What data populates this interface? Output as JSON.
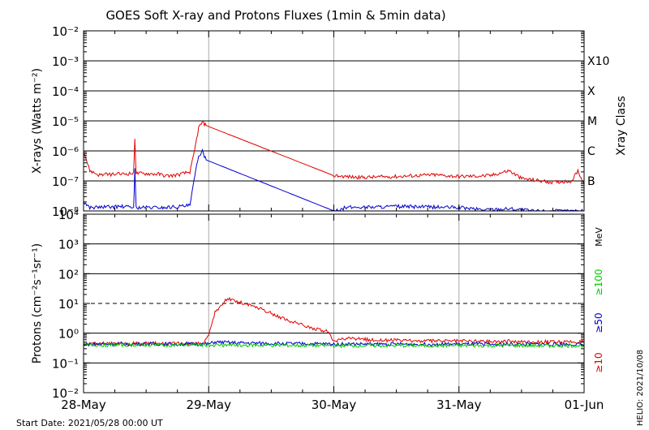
{
  "title": "GOES Soft X-ray and Protons Fluxes   (1min & 5min data)",
  "start_date": "Start Date: 2021/05/28 00:00 UT",
  "credit": "HELIO: 2021/10/08",
  "x_ticks": [
    "28-May",
    "29-May",
    "30-May",
    "31-May",
    "01-Jun"
  ],
  "colors": {
    "red": "#e00000",
    "blue": "#0000cc",
    "green": "#00cc00",
    "axes": "#000000",
    "grid_vertical": "#aaaaaa"
  },
  "chart_data": [
    {
      "type": "line",
      "ylabel": "X-rays (Watts m⁻²)",
      "yscale": "log",
      "ylim": [
        1e-08,
        0.01
      ],
      "ytick_labels": [
        "10⁻⁸",
        "10⁻⁷",
        "10⁻⁶",
        "10⁻⁵",
        "10⁻⁴",
        "10⁻³",
        "10⁻²"
      ],
      "xlim_days": [
        0,
        4
      ],
      "right_axis_label": "Xray Class",
      "class_labels": [
        {
          "label": "B",
          "value": 1e-07
        },
        {
          "label": "C",
          "value": 1e-06
        },
        {
          "label": "M",
          "value": 1e-05
        },
        {
          "label": "X",
          "value": 0.0001
        },
        {
          "label": "X10",
          "value": 0.001
        }
      ],
      "series": [
        {
          "color": "red",
          "points": [
            [
              0.0,
              1e-06
            ],
            [
              0.05,
              2.2e-07
            ],
            [
              0.12,
              1.6e-07
            ],
            [
              0.3,
              1.7e-07
            ],
            [
              0.4,
              1.8e-07
            ],
            [
              0.41,
              2.8e-06
            ],
            [
              0.42,
              1.8e-07
            ],
            [
              0.6,
              1.7e-07
            ],
            [
              0.65,
              1.5e-07
            ],
            [
              0.7,
              1.5e-07
            ],
            [
              0.75,
              1.6e-07
            ],
            [
              0.85,
              2e-07
            ],
            [
              0.88,
              7e-07
            ],
            [
              0.92,
              6e-06
            ],
            [
              0.95,
              9e-06
            ],
            [
              0.98,
              7e-06
            ],
            [
              2.0,
              1.5e-07
            ],
            [
              2.2,
              1.3e-07
            ],
            [
              2.5,
              1.4e-07
            ],
            [
              2.8,
              1.6e-07
            ],
            [
              3.0,
              1.4e-07
            ],
            [
              3.25,
              1.5e-07
            ],
            [
              3.4,
              2.2e-07
            ],
            [
              3.5,
              1.2e-07
            ],
            [
              3.75,
              9e-08
            ],
            [
              3.9,
              1e-07
            ],
            [
              3.95,
              2.2e-07
            ],
            [
              4.0,
              8e-08
            ]
          ]
        },
        {
          "color": "blue",
          "points": [
            [
              0.0,
              2e-08
            ],
            [
              0.05,
              1.3e-08
            ],
            [
              0.3,
              1.4e-08
            ],
            [
              0.4,
              1.3e-08
            ],
            [
              0.41,
              2.4e-07
            ],
            [
              0.42,
              1.3e-08
            ],
            [
              0.65,
              1.3e-08
            ],
            [
              0.85,
              1.5e-08
            ],
            [
              0.89,
              1.5e-07
            ],
            [
              0.92,
              7e-07
            ],
            [
              0.95,
              9.5e-07
            ],
            [
              0.98,
              5e-07
            ],
            [
              2.0,
              1e-08
            ],
            [
              2.1,
              1.3e-08
            ],
            [
              2.5,
              1.4e-08
            ],
            [
              3.0,
              1.3e-08
            ],
            [
              3.2,
              1.1e-08
            ],
            [
              3.4,
              1.2e-08
            ],
            [
              3.6,
              1e-08
            ],
            [
              4.0,
              1e-08
            ]
          ]
        }
      ]
    },
    {
      "type": "line",
      "ylabel": "Protons (cm⁻²s⁻¹sr⁻¹)",
      "yscale": "log",
      "ylim": [
        0.01,
        10000
      ],
      "ytick_labels": [
        "10⁻²",
        "10⁻¹",
        "10⁰",
        "10¹",
        "10²",
        "10³",
        "10⁴"
      ],
      "xlim_days": [
        0,
        4
      ],
      "dashed_threshold": 10,
      "right_unit": "MeV",
      "series": [
        {
          "name": "≥10",
          "color": "red",
          "points": [
            [
              0.0,
              0.45
            ],
            [
              0.95,
              0.45
            ],
            [
              1.0,
              0.8
            ],
            [
              1.05,
              5.0
            ],
            [
              1.1,
              9.0
            ],
            [
              1.15,
              14.0
            ],
            [
              1.25,
              11.0
            ],
            [
              1.4,
              7.0
            ],
            [
              1.6,
              3.0
            ],
            [
              1.8,
              1.6
            ],
            [
              1.95,
              1.1
            ],
            [
              2.0,
              0.55
            ],
            [
              2.1,
              0.65
            ],
            [
              2.3,
              0.6
            ],
            [
              2.6,
              0.55
            ],
            [
              3.0,
              0.55
            ],
            [
              3.5,
              0.52
            ],
            [
              4.0,
              0.5
            ]
          ]
        },
        {
          "name": "≥50",
          "color": "blue",
          "points": [
            [
              0.0,
              0.43
            ],
            [
              1.0,
              0.43
            ],
            [
              1.05,
              0.5
            ],
            [
              1.2,
              0.47
            ],
            [
              1.5,
              0.45
            ],
            [
              2.0,
              0.43
            ],
            [
              4.0,
              0.42
            ]
          ]
        },
        {
          "name": "≥100",
          "color": "green",
          "points": [
            [
              0.0,
              0.4
            ],
            [
              1.0,
              0.4
            ],
            [
              2.0,
              0.38
            ],
            [
              3.0,
              0.38
            ],
            [
              4.0,
              0.38
            ]
          ]
        }
      ]
    }
  ]
}
